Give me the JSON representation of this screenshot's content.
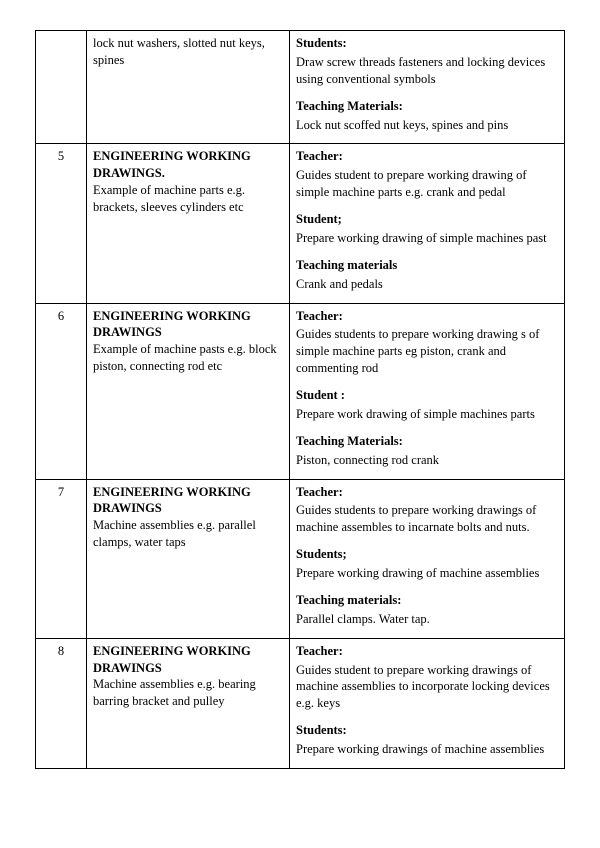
{
  "rows": [
    {
      "num": "",
      "topic_title": "",
      "topic_body": "lock  nut  washers, slotted nut  keys, spines",
      "sections": [
        {
          "label": "Students:",
          "text": "Draw  screw  threads  fasteners and locking devices  using    conventional  symbols"
        },
        {
          "label": "Teaching  Materials:",
          "text": "Lock nut  scoffed    nut  keys, spines and pins"
        }
      ]
    },
    {
      "num": "5",
      "topic_title": "ENGINEERING WORKING DRAWINGS.",
      "topic_body": "  Example of machine parts e.g. brackets, sleeves cylinders  etc",
      "sections": [
        {
          "label": "Teacher:",
          "text": "Guides student to prepare working drawing  of simple machine parts e.g.  crank and  pedal"
        },
        {
          "label": "Student;",
          "text": "Prepare working  drawing  of simple  machines past"
        },
        {
          "label": "Teaching  materials",
          "text": "Crank and pedals"
        }
      ]
    },
    {
      "num": "6",
      "topic_title": "ENGINEERING  WORKING DRAWINGS",
      "topic_body": " Example  of machine  pasts e.g. block  piston, connecting  rod  etc",
      "sections": [
        {
          "label": "Teacher:",
          "text": "Guides  students to  prepare working drawing s of simple  machine  parts  eg  piston, crank and  commenting  rod"
        },
        {
          "label": "Student :",
          "text": "Prepare work drawing  of  simple  machines parts"
        },
        {
          "label": "Teaching Materials:",
          "text": "Piston, connecting  rod  crank"
        }
      ]
    },
    {
      "num": "7",
      "topic_title": "ENGINEERING  WORKING DRAWINGS",
      "topic_body": "Machine assemblies e.g. parallel clamps, water  taps",
      "sections": [
        {
          "label": "Teacher:",
          "text": "Guides students to prepare working drawings of machine assembles to  incarnate  bolts and nuts."
        },
        {
          "label": "Students;",
          "text": "Prepare working  drawing  of machine  assemblies"
        },
        {
          "label": "Teaching  materials:",
          "text": "Parallel clamps. Water tap."
        }
      ]
    },
    {
      "num": "8",
      "topic_title": "ENGINEERING WORKING DRAWINGS",
      "topic_body": " Machine assemblies e.g. bearing  barring  bracket  and pulley",
      "sections": [
        {
          "label": "Teacher:",
          "text": "Guides  student  to  prepare working drawings of  machine  assemblies to incorporate  locking  devices e.g.  keys"
        },
        {
          "label": "Students:",
          "text": "Prepare working  drawings of machine assemblies"
        }
      ]
    }
  ]
}
